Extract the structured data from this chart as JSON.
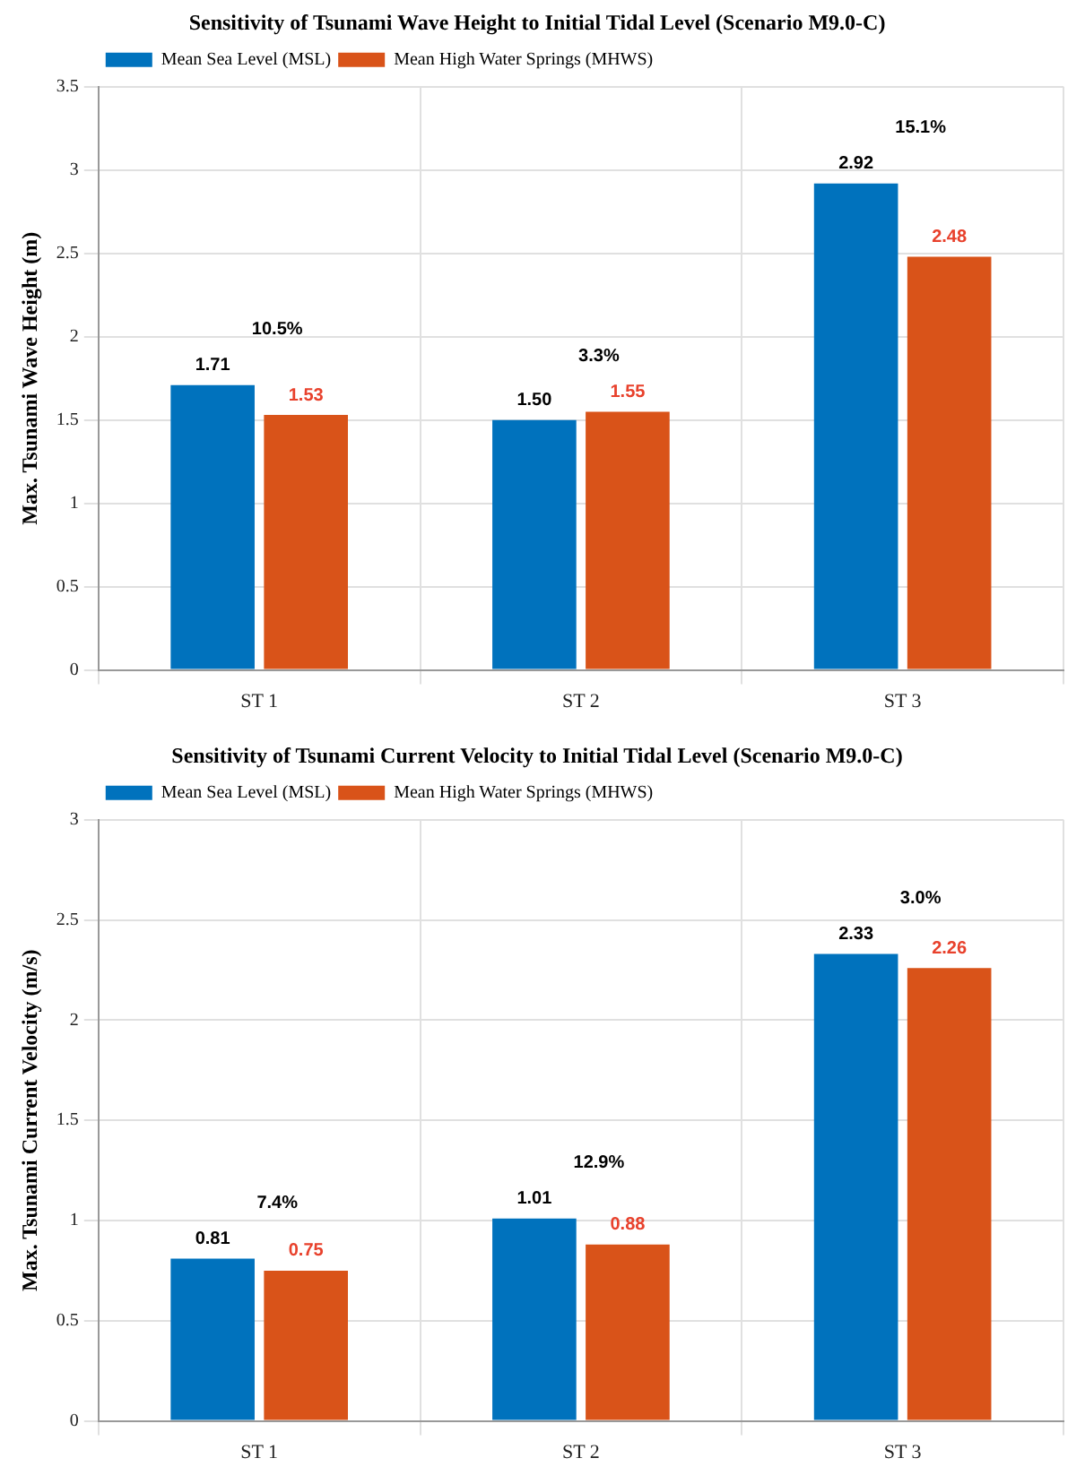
{
  "chart_data": [
    {
      "type": "bar",
      "title": "Sensitivity of Tsunami Wave Height to Initial Tidal Level (Scenario M9.0-C)",
      "ylabel": "Max. Tsunami Wave Height (m)",
      "categories": [
        "ST 1",
        "ST 2",
        "ST 3"
      ],
      "series": [
        {
          "name": "Mean Sea Level (MSL)",
          "color": "#0072bd",
          "values": [
            1.71,
            1.5,
            2.92
          ],
          "value_labels": [
            "1.71",
            "1.50",
            "2.92"
          ]
        },
        {
          "name": "Mean High Water Springs (MHWS)",
          "color": "#d95319",
          "values": [
            1.53,
            1.55,
            2.48
          ],
          "value_labels": [
            "1.53",
            "1.55",
            "2.48"
          ]
        }
      ],
      "ylim": [
        0,
        3.5
      ],
      "yticks": [
        0,
        0.5,
        1,
        1.5,
        2,
        2.5,
        3,
        3.5
      ],
      "grid": true,
      "legend": "top left",
      "annotations": [
        "10.5%",
        "3.3%",
        "15.1%"
      ]
    },
    {
      "type": "bar",
      "title": "Sensitivity of Tsunami Current Velocity to Initial Tidal Level (Scenario M9.0-C)",
      "ylabel": "Max. Tsunami Current Velocity (m/s)",
      "categories": [
        "ST 1",
        "ST 2",
        "ST 3"
      ],
      "series": [
        {
          "name": "Mean Sea Level (MSL)",
          "color": "#0072bd",
          "values": [
            0.81,
            1.01,
            2.33
          ],
          "value_labels": [
            "0.81",
            "1.01",
            "2.33"
          ]
        },
        {
          "name": "Mean High Water Springs (MHWS)",
          "color": "#d95319",
          "values": [
            0.75,
            0.88,
            2.26
          ],
          "value_labels": [
            "0.75",
            "0.88",
            "2.26"
          ]
        }
      ],
      "ylim": [
        0,
        3
      ],
      "yticks": [
        0,
        0.5,
        1,
        1.5,
        2,
        2.5,
        3
      ],
      "grid": true,
      "legend": "top left",
      "annotations": [
        "7.4%",
        "12.9%",
        "3.0%"
      ]
    }
  ]
}
